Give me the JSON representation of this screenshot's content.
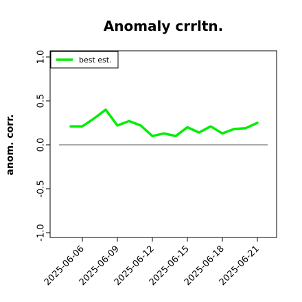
{
  "chart_data": {
    "type": "line",
    "title": "Anomaly crrltn.",
    "ylabel": "anom. corr.",
    "xlabel": "",
    "ylim": [
      -1.0,
      1.0
    ],
    "yticks": [
      "-1.0",
      "-0.5",
      "0.0",
      "0.5",
      "1.0"
    ],
    "ytick_values": [
      -1.0,
      -0.5,
      0.0,
      0.5,
      1.0
    ],
    "xticks": [
      "2025-06-06",
      "2025-06-09",
      "2025-06-12",
      "2025-06-15",
      "2025-06-18",
      "2025-06-21"
    ],
    "x": [
      "2025-06-05",
      "2025-06-06",
      "2025-06-07",
      "2025-06-08",
      "2025-06-09",
      "2025-06-10",
      "2025-06-11",
      "2025-06-12",
      "2025-06-13",
      "2025-06-14",
      "2025-06-15",
      "2025-06-16",
      "2025-06-17",
      "2025-06-18",
      "2025-06-19",
      "2025-06-20",
      "2025-06-21"
    ],
    "series": [
      {
        "name": "best est.",
        "color": "#00ee00",
        "values": [
          0.21,
          0.21,
          0.3,
          0.4,
          0.22,
          0.27,
          0.22,
          0.1,
          0.13,
          0.1,
          0.2,
          0.14,
          0.21,
          0.13,
          0.18,
          0.19,
          0.25
        ]
      }
    ],
    "reference_line": {
      "y": 0.0,
      "color": "#555555"
    },
    "legend": {
      "placement": "top-left"
    },
    "grid": false
  }
}
